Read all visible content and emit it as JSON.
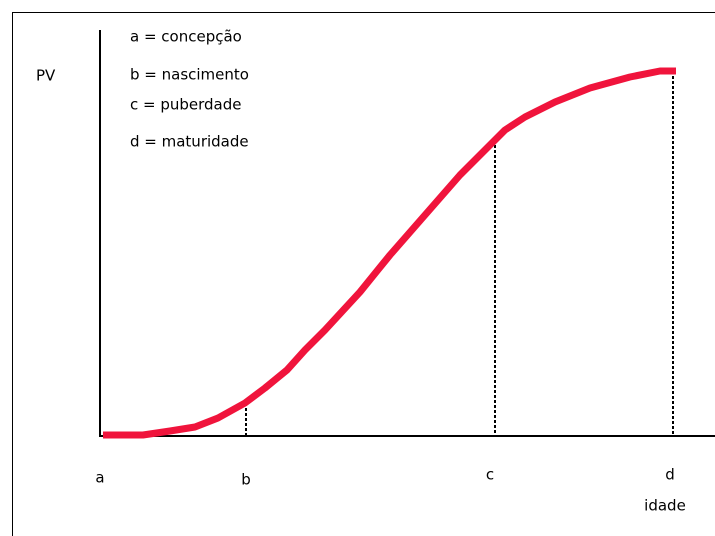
{
  "y_label": "PV",
  "x_label": "idade",
  "legend": [
    "a = concepção",
    "b = nascimento",
    "c = puberdade",
    "d = maturidade"
  ],
  "points": [
    "a",
    "b",
    "c",
    "d"
  ]
}
